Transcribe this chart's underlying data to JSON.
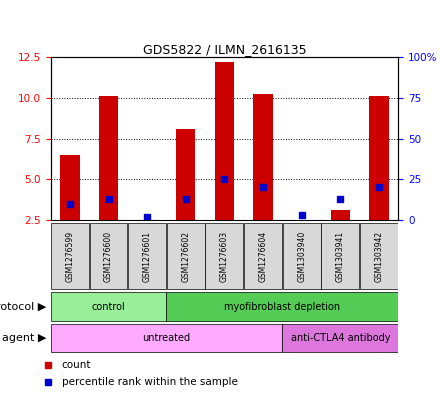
{
  "title": "GDS5822 / ILMN_2616135",
  "samples": [
    "GSM1276599",
    "GSM1276600",
    "GSM1276601",
    "GSM1276602",
    "GSM1276603",
    "GSM1276604",
    "GSM1303940",
    "GSM1303941",
    "GSM1303942"
  ],
  "count_values": [
    6.5,
    10.1,
    2.4,
    8.1,
    12.2,
    10.2,
    2.4,
    3.1,
    10.1
  ],
  "percentile_values": [
    10,
    13,
    2,
    13,
    25,
    20,
    3,
    13,
    20
  ],
  "left_ylim": [
    2.5,
    12.5
  ],
  "right_ylim": [
    0,
    100
  ],
  "left_yticks": [
    2.5,
    5.0,
    7.5,
    10.0,
    12.5
  ],
  "right_yticks": [
    0,
    25,
    50,
    75,
    100
  ],
  "right_yticklabels": [
    "0",
    "25",
    "50",
    "75",
    "100%"
  ],
  "bar_color": "#cc0000",
  "blue_color": "#0000cc",
  "protocol_groups": [
    {
      "label": "control",
      "start": 0,
      "end": 2,
      "color": "#99ee99"
    },
    {
      "label": "myofibroblast depletion",
      "start": 3,
      "end": 8,
      "color": "#55cc55"
    }
  ],
  "agent_groups": [
    {
      "label": "untreated",
      "start": 0,
      "end": 5,
      "color": "#ffaaff"
    },
    {
      "label": "anti-CTLA4 antibody",
      "start": 6,
      "end": 8,
      "color": "#dd77dd"
    }
  ],
  "legend_count_label": "count",
  "legend_percentile_label": "percentile rank within the sample",
  "protocol_label": "protocol",
  "agent_label": "agent",
  "bg_color": "#d8d8d8",
  "plot_bg": "#ffffff"
}
